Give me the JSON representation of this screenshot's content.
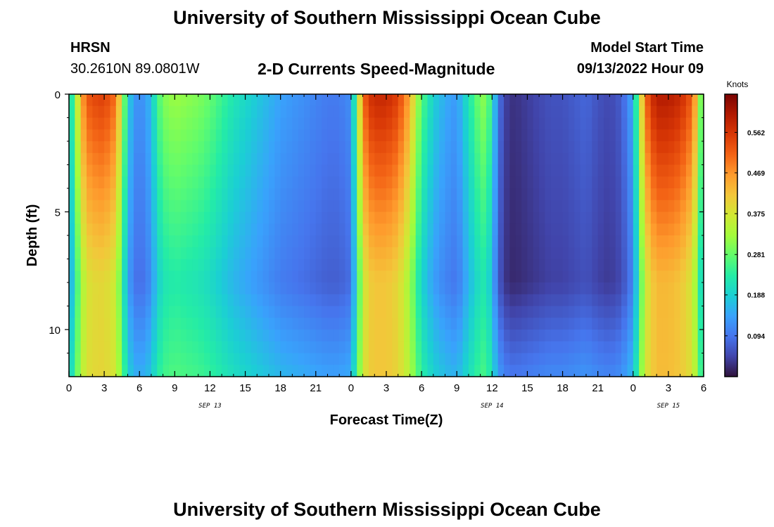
{
  "header": {
    "main_title": "University of Southern Mississippi Ocean Cube",
    "station": "HRSN",
    "coords": "30.2610N  89.0801W",
    "model_start_label": "Model Start Time",
    "model_start_value": "09/13/2022 Hour 09",
    "footer_title": "University of Southern Mississippi Ocean Cube"
  },
  "colors": {
    "scale": [
      "#30123b",
      "#4145ab",
      "#4675ed",
      "#39a2fc",
      "#1bcfd4",
      "#24eca6",
      "#61fc6c",
      "#a4fc3b",
      "#d1e834",
      "#f3c63a",
      "#fe9b2d",
      "#f36315",
      "#d93806",
      "#b11901",
      "#7a0402"
    ]
  },
  "chart_data": {
    "type": "heatmap",
    "title": "2-D Currents Speed-Magnitude",
    "xlabel": "Forecast Time(Z)",
    "ylabel": "Depth (ft)",
    "colorbar_label": "Knots",
    "x_ticks": [
      "0",
      "3",
      "6",
      "9",
      "12",
      "15",
      "18",
      "21",
      "0",
      "3",
      "6",
      "9",
      "12",
      "15",
      "18",
      "21",
      "0",
      "3",
      "6"
    ],
    "y_ticks": [
      "0",
      "5",
      "10"
    ],
    "date_labels": [
      {
        "label": "SEP 13",
        "hour": 12
      },
      {
        "label": "SEP 14",
        "hour": 36
      },
      {
        "label": "SEP 15",
        "hour": 51
      }
    ],
    "x_range_hours": [
      0,
      54
    ],
    "depth_range_ft": [
      0,
      12
    ],
    "color_range": [
      0.0,
      0.65
    ],
    "colorbar_ticks": [
      0.094,
      0.188,
      0.281,
      0.375,
      0.469,
      0.562
    ],
    "speed_profile": {
      "hours": [
        0,
        0.5,
        1,
        1.5,
        2,
        3,
        4,
        4.5,
        5,
        5.5,
        6,
        6.5,
        7,
        7.5,
        8,
        9,
        10,
        11,
        12,
        13,
        14,
        15,
        16,
        17,
        18,
        19,
        20,
        21,
        22,
        23,
        24,
        24.5,
        25,
        25.5,
        26,
        27,
        28,
        29,
        29.5,
        30,
        31,
        32,
        33,
        34,
        35,
        35.5,
        36,
        36.5,
        37,
        37.5,
        38,
        39,
        40,
        41,
        42,
        43,
        44,
        45,
        46,
        47,
        48,
        48.5,
        49,
        49.5,
        50,
        51,
        52,
        53,
        53.5,
        54
      ],
      "surface_knots": [
        0.17,
        0.3,
        0.44,
        0.52,
        0.54,
        0.55,
        0.5,
        0.35,
        0.2,
        0.13,
        0.12,
        0.13,
        0.17,
        0.25,
        0.3,
        0.32,
        0.31,
        0.3,
        0.28,
        0.25,
        0.22,
        0.2,
        0.18,
        0.16,
        0.14,
        0.13,
        0.12,
        0.11,
        0.1,
        0.1,
        0.12,
        0.3,
        0.5,
        0.56,
        0.58,
        0.58,
        0.55,
        0.45,
        0.35,
        0.27,
        0.19,
        0.15,
        0.13,
        0.22,
        0.3,
        0.31,
        0.22,
        0.1,
        0.05,
        0.03,
        0.03,
        0.04,
        0.05,
        0.06,
        0.06,
        0.07,
        0.08,
        0.06,
        0.05,
        0.07,
        0.15,
        0.32,
        0.5,
        0.56,
        0.6,
        0.6,
        0.58,
        0.52,
        0.4,
        0.2
      ]
    }
  }
}
